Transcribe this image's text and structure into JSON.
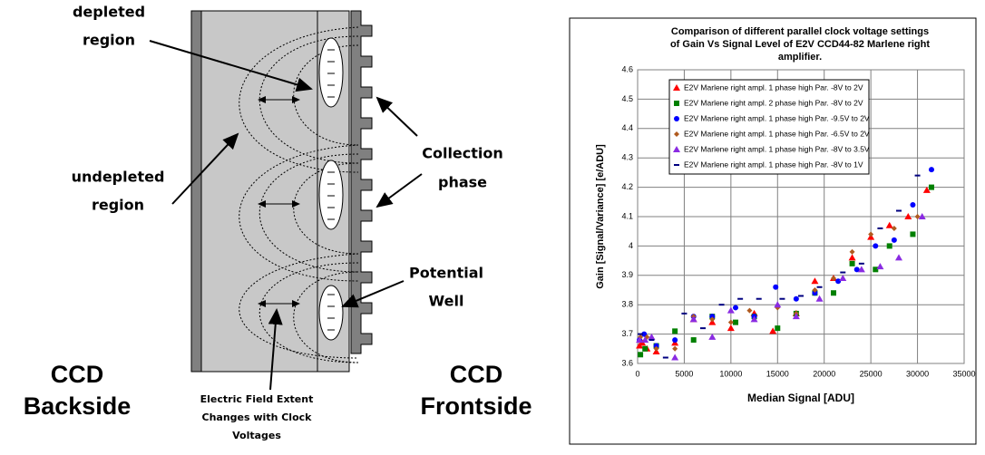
{
  "diagram": {
    "depleted_region": [
      "depleted",
      "region"
    ],
    "undepleted_region": [
      "undepleted",
      "region"
    ],
    "collection_phase": [
      "Collection",
      "phase"
    ],
    "potential_well": [
      "Potential",
      "Well"
    ],
    "ccd_backside": [
      "CCD",
      "Backside"
    ],
    "ccd_frontside": [
      "CCD",
      "Frontside"
    ],
    "electric_field": [
      "Electric Field Extent",
      "Changes with Clock",
      "Voltages"
    ]
  },
  "chart_data": {
    "type": "scatter",
    "title": [
      "Comparison of different parallel clock voltage settings",
      "of Gain  Vs Signal Level of E2V CCD44-82 Marlene right",
      "amplifier."
    ],
    "x_label": "Median Signal [ADU]",
    "y_label": "Gain [Signal/Variance] [e/ADU]",
    "xlim": [
      0,
      35000
    ],
    "ylim": [
      3.6,
      4.6
    ],
    "xticks": [
      0,
      5000,
      10000,
      15000,
      20000,
      25000,
      30000,
      35000
    ],
    "yticks": [
      3.6,
      3.7,
      3.8,
      3.9,
      4,
      4.1,
      4.2,
      4.3,
      4.4,
      4.5,
      4.6
    ],
    "grid": true,
    "legend": "upper left",
    "series": [
      {
        "name": "E2V Marlene right ampl. 1 phase high Par. -8V to 2V",
        "color": "#ff0000",
        "marker": "triangle",
        "x": [
          200,
          500,
          1000,
          2000,
          4000,
          6000,
          8000,
          10000,
          12500,
          14500,
          17000,
          19000,
          21000,
          23000,
          25000,
          27000,
          29000,
          31000
        ],
        "values": [
          3.66,
          3.67,
          3.65,
          3.64,
          3.67,
          3.75,
          3.74,
          3.72,
          3.77,
          3.71,
          3.77,
          3.88,
          3.89,
          3.96,
          4.03,
          4.07,
          4.1,
          4.19
        ]
      },
      {
        "name": "E2V Marlene right ampl. 2 phase high Par. -8V to 2V",
        "color": "#008000",
        "marker": "square",
        "x": [
          300,
          800,
          2000,
          4000,
          6000,
          8000,
          10500,
          12500,
          15000,
          17000,
          19000,
          21000,
          23000,
          25500,
          27000,
          29500,
          31500
        ],
        "values": [
          3.63,
          3.65,
          3.66,
          3.71,
          3.68,
          3.76,
          3.74,
          3.76,
          3.72,
          3.77,
          3.84,
          3.84,
          3.94,
          3.92,
          4.0,
          4.04,
          4.2
        ]
      },
      {
        "name": "E2V Marlene right ampl. 1 phase high Par. -9.5V to 2V",
        "color": "#0000ff",
        "marker": "circle",
        "x": [
          200,
          700,
          2000,
          4000,
          6000,
          8000,
          10500,
          12500,
          14800,
          17000,
          19000,
          21500,
          23500,
          25500,
          27500,
          29500,
          31500
        ],
        "values": [
          3.68,
          3.7,
          3.66,
          3.68,
          3.76,
          3.76,
          3.79,
          3.76,
          3.86,
          3.82,
          3.84,
          3.88,
          3.92,
          4.0,
          4.02,
          4.14,
          4.26
        ]
      },
      {
        "name": "E2V Marlene right ampl. 1 phase high Par. -6.5V to 2V",
        "color": "#b05a1e",
        "marker": "diamond",
        "x": [
          300,
          1000,
          2000,
          4000,
          6000,
          8000,
          10000,
          12000,
          15000,
          17000,
          19000,
          21000,
          23000,
          25000,
          27500,
          30000
        ],
        "values": [
          3.69,
          3.69,
          3.65,
          3.65,
          3.76,
          3.75,
          3.74,
          3.78,
          3.79,
          3.77,
          3.85,
          3.89,
          3.98,
          4.04,
          4.06,
          4.1
        ]
      },
      {
        "name": "E2V Marlene right ampl. 1 phase high Par. -8V to 3.5V",
        "color": "#8a2be2",
        "marker": "triangle",
        "x": [
          200,
          800,
          1500,
          4000,
          6000,
          8000,
          10000,
          12500,
          15000,
          17000,
          19500,
          22000,
          24000,
          26000,
          28000,
          30500
        ],
        "values": [
          3.68,
          3.68,
          3.69,
          3.62,
          3.75,
          3.69,
          3.78,
          3.75,
          3.8,
          3.76,
          3.82,
          3.89,
          3.92,
          3.93,
          3.96,
          4.1
        ]
      },
      {
        "name": "E2V Marlene right ampl. 1 phase high Par. -8V to 1V",
        "color": "#000080",
        "marker": "dash",
        "x": [
          300,
          1500,
          3000,
          5000,
          7000,
          9000,
          11000,
          13000,
          15500,
          17500,
          19500,
          22000,
          24000,
          26000,
          28000,
          30000
        ],
        "values": [
          3.7,
          3.68,
          3.62,
          3.77,
          3.72,
          3.8,
          3.82,
          3.82,
          3.82,
          3.83,
          3.86,
          3.91,
          3.94,
          4.06,
          4.12,
          4.24
        ]
      }
    ]
  }
}
